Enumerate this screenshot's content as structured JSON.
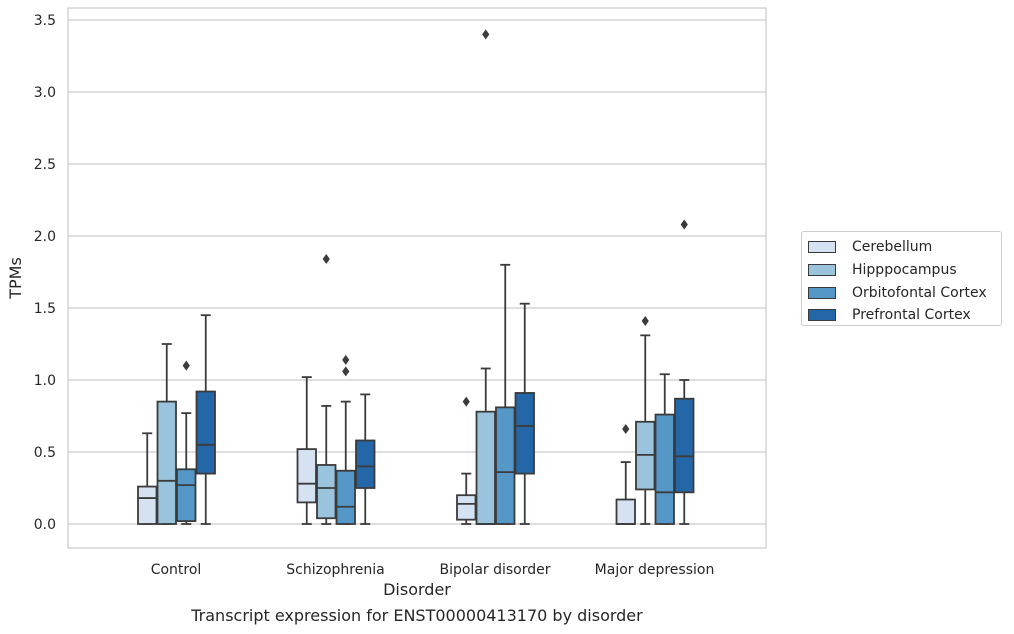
{
  "chart_data": {
    "type": "box",
    "xlabel": "Disorder",
    "ylabel": "TPMs",
    "ylim": [
      -0.17,
      3.58
    ],
    "yticks": [
      "0.0",
      "0.5",
      "1.0",
      "1.5",
      "2.0",
      "2.5",
      "3.0",
      "3.5"
    ],
    "grid": true,
    "legend_placement": "outside-right",
    "categories": [
      "Control",
      "Schizophrenia",
      "Bipolar disorder",
      "Major depression"
    ],
    "series": [
      {
        "name": "Cerebellum",
        "color": "#d4e2f1",
        "boxes": [
          {
            "whisker_low": 0.0,
            "q1": 0.0,
            "median": 0.18,
            "q3": 0.26,
            "whisker_high": 0.63,
            "outliers": []
          },
          {
            "whisker_low": 0.0,
            "q1": 0.15,
            "median": 0.28,
            "q3": 0.52,
            "whisker_high": 1.02,
            "outliers": []
          },
          {
            "whisker_low": 0.0,
            "q1": 0.03,
            "median": 0.14,
            "q3": 0.2,
            "whisker_high": 0.35,
            "outliers": [
              0.85
            ]
          },
          {
            "whisker_low": 0.0,
            "q1": 0.0,
            "median": 0.0,
            "q3": 0.17,
            "whisker_high": 0.43,
            "outliers": [
              0.66
            ]
          }
        ]
      },
      {
        "name": "Hipppocampus",
        "color": "#9ac3dd",
        "boxes": [
          {
            "whisker_low": 0.0,
            "q1": 0.0,
            "median": 0.3,
            "q3": 0.85,
            "whisker_high": 1.25,
            "outliers": []
          },
          {
            "whisker_low": 0.0,
            "q1": 0.04,
            "median": 0.25,
            "q3": 0.41,
            "whisker_high": 0.82,
            "outliers": [
              1.84
            ]
          },
          {
            "whisker_low": 0.0,
            "q1": 0.0,
            "median": 0.0,
            "q3": 0.78,
            "whisker_high": 1.08,
            "outliers": [
              3.4
            ]
          },
          {
            "whisker_low": 0.0,
            "q1": 0.24,
            "median": 0.48,
            "q3": 0.71,
            "whisker_high": 1.31,
            "outliers": [
              1.41
            ]
          }
        ]
      },
      {
        "name": "Orbitofontal Cortex",
        "color": "#5598c8",
        "boxes": [
          {
            "whisker_low": 0.0,
            "q1": 0.02,
            "median": 0.27,
            "q3": 0.38,
            "whisker_high": 0.77,
            "outliers": [
              1.1
            ]
          },
          {
            "whisker_low": 0.0,
            "q1": 0.0,
            "median": 0.12,
            "q3": 0.37,
            "whisker_high": 0.85,
            "outliers": [
              1.06,
              1.14
            ]
          },
          {
            "whisker_low": 0.0,
            "q1": 0.0,
            "median": 0.36,
            "q3": 0.81,
            "whisker_high": 1.8,
            "outliers": []
          },
          {
            "whisker_low": 0.0,
            "q1": 0.0,
            "median": 0.22,
            "q3": 0.76,
            "whisker_high": 1.04,
            "outliers": []
          }
        ]
      },
      {
        "name": "Prefrontal Cortex",
        "color": "#2467a9",
        "boxes": [
          {
            "whisker_low": 0.0,
            "q1": 0.35,
            "median": 0.55,
            "q3": 0.92,
            "whisker_high": 1.45,
            "outliers": []
          },
          {
            "whisker_low": 0.0,
            "q1": 0.25,
            "median": 0.4,
            "q3": 0.58,
            "whisker_high": 0.9,
            "outliers": []
          },
          {
            "whisker_low": 0.0,
            "q1": 0.35,
            "median": 0.68,
            "q3": 0.91,
            "whisker_high": 1.53,
            "outliers": []
          },
          {
            "whisker_low": 0.0,
            "q1": 0.22,
            "median": 0.47,
            "q3": 0.87,
            "whisker_high": 1.0,
            "outliers": [
              2.08
            ]
          }
        ]
      }
    ]
  },
  "caption": "Transcript expression for ENST00000413170 by disorder"
}
